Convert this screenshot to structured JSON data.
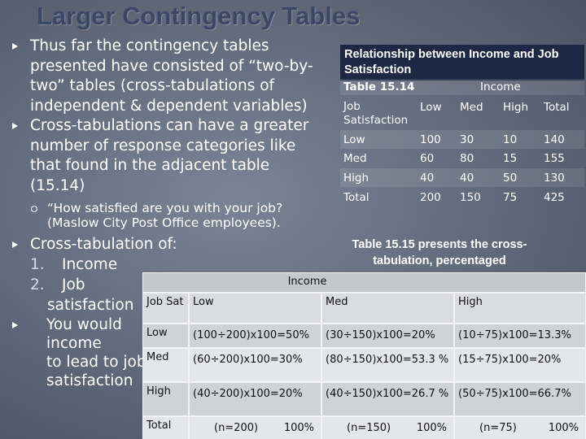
{
  "title": "Larger Contingency Tables",
  "bullets": [
    {
      "lines": [
        "Thus far the contingency tables",
        "presented have consisted of “two-by-",
        "two” tables (cross-tabulations of",
        "independent & dependent variables)"
      ]
    },
    {
      "lines": [
        "Cross-tabulations can have a greater",
        "number of response categories like",
        "that found in the adjacent table",
        "(15.14)"
      ],
      "sub": [
        "“How satisfied are you with your job?",
        "(Maslow City Post Office employees)."
      ]
    },
    {
      "lines": [
        "Cross-tabulation of:"
      ],
      "items": [
        {
          "number": "1.",
          "lines": [
            "Income"
          ]
        },
        {
          "number": "2.",
          "lines": [
            "Job",
            "satisfaction"
          ]
        }
      ]
    },
    {
      "lines": [
        "You would",
        "income",
        "to lead to job",
        "satisfaction"
      ]
    }
  ],
  "table1": {
    "caption": "Relationship between Income and Job Satisfaction",
    "label": "Table 15.14",
    "column_group": "Income",
    "row_header": "Job Satisfaction",
    "columns": [
      "Low",
      "Med",
      "High",
      "Total"
    ],
    "rows": [
      {
        "label": "Low",
        "cells": [
          100,
          30,
          10,
          140
        ]
      },
      {
        "label": "Med",
        "cells": [
          60,
          80,
          15,
          155
        ]
      },
      {
        "label": "High",
        "cells": [
          40,
          40,
          50,
          130
        ]
      },
      {
        "label": "Total",
        "cells": [
          200,
          150,
          75,
          425
        ]
      }
    ]
  },
  "table2": {
    "caption": "Table 15.15 presents the cross-tabulation, percentaged",
    "column_group": "Income",
    "row_header": "Job Sat",
    "columns": [
      "Low",
      "Med",
      "High"
    ],
    "rows": [
      {
        "label": "Low",
        "cells": [
          "(100÷200)x100=50%",
          "(30÷150)x100=20%",
          "(10÷75)x100=13.3%"
        ]
      },
      {
        "label": "Med",
        "cells": [
          "(60÷200)x100=30%",
          "(80÷150)x100=53.3 %",
          "(15÷75)x100=20%"
        ]
      },
      {
        "label": "High",
        "cells": [
          "(40÷200)x100=20%",
          "(40÷150)x100=26.7 %",
          "(50÷75)x100=66.7%"
        ]
      }
    ],
    "total": {
      "label": "Total",
      "cells": [
        {
          "n": "(n=200)",
          "percent": "100%"
        },
        {
          "n": "(n=150)",
          "percent": "100%"
        },
        {
          "n": "(n=75)",
          "percent": "100%"
        }
      ]
    }
  }
}
